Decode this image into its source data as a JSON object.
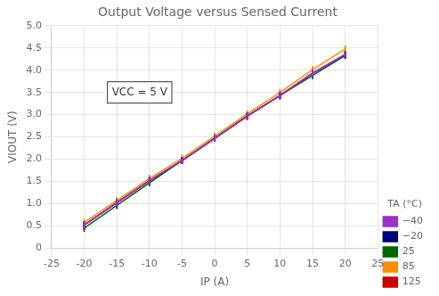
{
  "chart_data": {
    "type": "line",
    "title": "Output Voltage versus Sensed Current",
    "x_label": "IP (A)",
    "y_label": "VIOUT (V)",
    "annotation": "VCC = 5 V",
    "legend_title": "TA (°C)",
    "legend": "lower right",
    "grid": true,
    "marker": "vline",
    "xlim": [
      -25,
      25
    ],
    "ylim": [
      0,
      5
    ],
    "xticks": [
      -25,
      -20,
      -15,
      -10,
      -5,
      0,
      5,
      10,
      15,
      20,
      25
    ],
    "yticks": [
      0,
      0.5,
      {
        "value": 1,
        "label": "1.0"
      },
      1.5,
      {
        "value": 2,
        "label": "2.0"
      },
      2.5,
      {
        "value": 3,
        "label": "3.0"
      },
      3.5,
      {
        "value": 4,
        "label": "4.0"
      },
      4.5,
      {
        "value": 5,
        "label": "5.0"
      }
    ],
    "x": [
      -20,
      -15,
      -10,
      -5,
      0,
      5,
      10,
      15,
      20
    ],
    "series": [
      {
        "name": "−40",
        "color": "#9933CC",
        "values": [
          0.52,
          1.02,
          1.52,
          1.97,
          2.47,
          2.97,
          3.43,
          3.93,
          4.35
        ]
      },
      {
        "name": "−20",
        "color": "#000080",
        "values": [
          0.52,
          1.02,
          1.52,
          1.97,
          2.47,
          2.97,
          3.43,
          3.93,
          4.35
        ]
      },
      {
        "name": "25",
        "color": "#006600",
        "values": [
          0.45,
          0.96,
          1.47,
          1.97,
          2.47,
          2.97,
          3.43,
          3.88,
          4.33
        ]
      },
      {
        "name": "85",
        "color": "#FF8C00",
        "values": [
          0.58,
          1.07,
          1.57,
          2.02,
          2.52,
          3.02,
          3.5,
          4.01,
          4.48
        ]
      },
      {
        "name": "125",
        "color": "#CC0000",
        "values": [
          0.52,
          1.02,
          1.52,
          1.97,
          2.47,
          2.97,
          3.43,
          3.93,
          4.35
        ]
      }
    ]
  }
}
